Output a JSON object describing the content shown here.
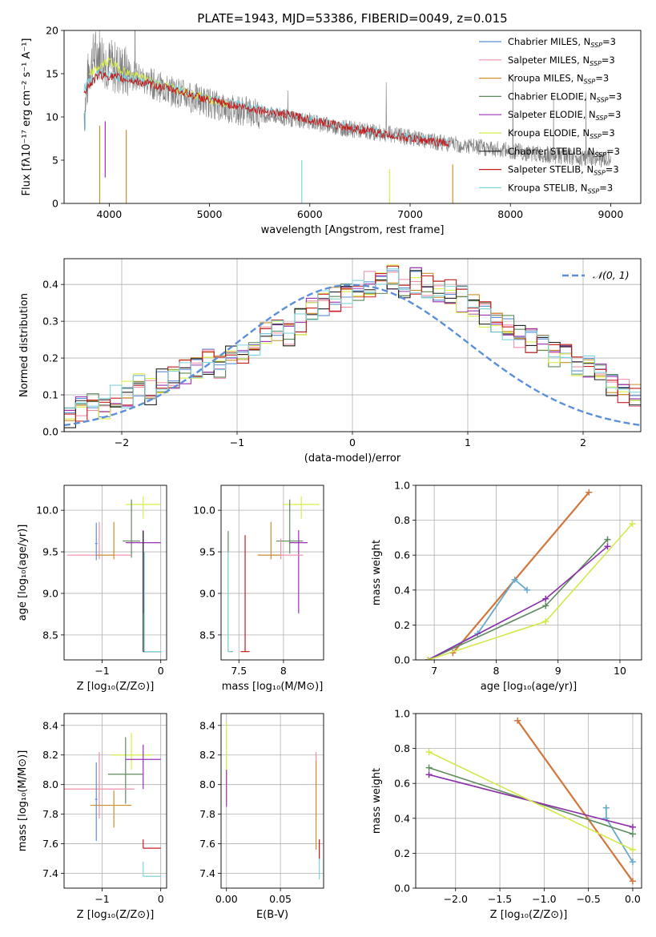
{
  "figure_title": "PLATE=1943, MJD=53386, FIBERID=0049, z=0.015",
  "colors": {
    "chabrier_miles": "#5b8fd9",
    "salpeter_miles": "#f08fa8",
    "kroupa_miles": "#c9902a",
    "chabrier_elodie": "#5e8a5c",
    "salpeter_elodie": "#9b30b4",
    "kroupa_elodie": "#d8ee4a",
    "chabrier_stelib": "#222222",
    "salpeter_stelib": "#c81c1c",
    "kroupa_stelib": "#7fd4de",
    "data_spectrum": "#808080",
    "avg_chabrier_miles": "#66aacc",
    "avg_elodie_line": "#5e8a5c",
    "avg_salpeter_line": "#8b2fa8",
    "avg_kroupa_line": "#d4e84a",
    "avg_orange_line": "#d2773c"
  },
  "chart_data": [
    {
      "id": "spectrum",
      "type": "line",
      "title": "PLATE=1943, MJD=53386, FIBERID=0049, z=0.015",
      "xlabel": "wavelength [Angstrom, rest frame]",
      "ylabel": "Flux [fλ10⁻¹⁷ erg cm⁻² s⁻¹ A⁻¹]",
      "xlim": [
        3550,
        9300
      ],
      "ylim": [
        0,
        20
      ],
      "xticks": [
        4000,
        5000,
        6000,
        7000,
        8000,
        9000
      ],
      "yticks": [
        0,
        5,
        10,
        15,
        20
      ],
      "legend_position": "top-right",
      "legend": [
        {
          "label": "Chabrier MILES, N",
          "sub": "SSP",
          "suffix": "=3",
          "color_key": "chabrier_miles"
        },
        {
          "label": "Salpeter MILES, N",
          "sub": "SSP",
          "suffix": "=3",
          "color_key": "salpeter_miles"
        },
        {
          "label": "Kroupa MILES, N",
          "sub": "SSP",
          "suffix": "=3",
          "color_key": "kroupa_miles"
        },
        {
          "label": "Chabrier ELODIE, N",
          "sub": "SSP",
          "suffix": "=3",
          "color_key": "chabrier_elodie"
        },
        {
          "label": "Salpeter ELODIE, N",
          "sub": "SSP",
          "suffix": "=3",
          "color_key": "salpeter_elodie"
        },
        {
          "label": "Kroupa ELODIE, N",
          "sub": "SSP",
          "suffix": "=3",
          "color_key": "kroupa_elodie"
        },
        {
          "label": "Chabrier STELIB, N",
          "sub": "SSP",
          "suffix": "=3",
          "color_key": "chabrier_stelib"
        },
        {
          "label": "Salpeter STELIB, N",
          "sub": "SSP",
          "suffix": "=3",
          "color_key": "salpeter_stelib"
        },
        {
          "label": "Kroupa STELIB, N",
          "sub": "SSP",
          "suffix": "=3",
          "color_key": "kroupa_stelib"
        }
      ],
      "data_series": {
        "x": [
          3750,
          3800,
          3850,
          3900,
          3950,
          4000,
          4100,
          4200,
          4300,
          4400,
          4500,
          4600,
          4700,
          4800,
          4900,
          5000,
          5200,
          5400,
          5600,
          5800,
          6000,
          6200,
          6400,
          6600,
          6800,
          7000,
          7200,
          7400,
          7600,
          7800,
          8000,
          8200,
          8400,
          8600,
          8800,
          9000
        ],
        "y": [
          10.5,
          15.5,
          17,
          17.5,
          16.5,
          16,
          15.5,
          15,
          14.5,
          14,
          13.5,
          13,
          12.8,
          12.3,
          12,
          11.6,
          11,
          10.6,
          10.2,
          9.8,
          9.5,
          9,
          8.6,
          8.3,
          8,
          7.6,
          7.2,
          6.9,
          6.6,
          6.3,
          6.1,
          5.8,
          5.6,
          5.4,
          5.2,
          5.0
        ]
      },
      "model_series": [
        {
          "name": "Kroupa ELODIE, NSSP=3",
          "color_key": "kroupa_elodie",
          "x": [
            3800,
            3900,
            4000,
            4100,
            4200,
            4400,
            4600,
            4800,
            5000,
            5200
          ],
          "y": [
            14.8,
            15.8,
            16.5,
            15.6,
            15,
            14.2,
            13.5,
            12.8,
            12,
            11.4
          ]
        },
        {
          "name": "Kroupa STELIB, NSSP=3",
          "color_key": "kroupa_stelib",
          "x": [
            3750,
            3900,
            4100,
            4400,
            4700,
            5000,
            5400,
            5800,
            6200,
            6600,
            7000,
            7400
          ],
          "y": [
            13.5,
            15.2,
            14.6,
            14,
            13.2,
            12,
            11.2,
            10.3,
            9.3,
            8.4,
            7.6,
            7
          ]
        },
        {
          "name": "Salpeter STELIB, NSSP=3",
          "color_key": "salpeter_stelib",
          "x": [
            3750,
            3900,
            4100,
            4400,
            4700,
            5000,
            5400,
            5800,
            6200,
            6600,
            7000,
            7400
          ],
          "y": [
            13,
            14.9,
            14.5,
            13.8,
            13,
            11.9,
            11,
            10.2,
            9.2,
            8.3,
            7.5,
            6.9
          ]
        }
      ],
      "spikes": [
        {
          "x": 3760,
          "ymin": 8.5,
          "ymax": 10.5,
          "color_key": "kroupa_stelib"
        },
        {
          "x": 3905,
          "ymin": 0,
          "ymax": 9,
          "color_key": "kroupa_miles"
        },
        {
          "x": 3960,
          "ymin": 3,
          "ymax": 9.5,
          "color_key": "salpeter_elodie"
        },
        {
          "x": 4170,
          "ymin": 0,
          "ymax": 8.5,
          "color_key": "kroupa_miles"
        },
        {
          "x": 5920,
          "ymin": 0,
          "ymax": 5,
          "color_key": "kroupa_stelib"
        },
        {
          "x": 6795,
          "ymin": 0,
          "ymax": 4,
          "color_key": "kroupa_elodie"
        },
        {
          "x": 7425,
          "ymin": 0,
          "ymax": 4.5,
          "color_key": "kroupa_miles"
        }
      ]
    },
    {
      "id": "residuals",
      "type": "histogram",
      "xlabel": "(data-model)/error",
      "ylabel": "Normed distribution",
      "xlim": [
        -2.5,
        2.5
      ],
      "ylim": [
        0,
        0.47
      ],
      "xticks": [
        -2,
        -1,
        0,
        1,
        2
      ],
      "yticks": [
        0.0,
        0.1,
        0.2,
        0.3,
        0.4
      ],
      "grid": true,
      "legend_position": "top-right",
      "gaussian_label": "𝒩(0, 1)",
      "gaussian_color": "#5b8fd9",
      "bin_width": 0.1,
      "bins_start": -2.5,
      "base_heights": [
        0.04,
        0.06,
        0.08,
        0.07,
        0.09,
        0.1,
        0.12,
        0.11,
        0.14,
        0.15,
        0.16,
        0.17,
        0.19,
        0.18,
        0.2,
        0.22,
        0.24,
        0.26,
        0.28,
        0.27,
        0.3,
        0.33,
        0.35,
        0.36,
        0.37,
        0.38,
        0.4,
        0.41,
        0.42,
        0.4,
        0.41,
        0.4,
        0.39,
        0.38,
        0.36,
        0.35,
        0.32,
        0.3,
        0.28,
        0.26,
        0.25,
        0.23,
        0.21,
        0.2,
        0.18,
        0.17,
        0.15,
        0.13,
        0.11,
        0.1
      ],
      "series_keys": [
        "chabrier_miles",
        "salpeter_miles",
        "kroupa_miles",
        "chabrier_elodie",
        "salpeter_elodie",
        "kroupa_elodie",
        "chabrier_stelib",
        "salpeter_stelib",
        "kroupa_stelib"
      ]
    },
    {
      "id": "z_vs_age",
      "type": "errorbar",
      "xlabel": "Z [log₁₀(Z/Z⊙)]",
      "ylabel": "age  [log₁₀(age/yr)]",
      "xlim": [
        -1.65,
        0.1
      ],
      "ylim": [
        8.2,
        10.3
      ],
      "xticks": [
        -1,
        0
      ],
      "yticks": [
        8.5,
        9.0,
        9.5,
        10.0
      ],
      "grid": true,
      "points": [
        {
          "x": -0.3,
          "y": 10.07,
          "xerr": 0.3,
          "yerr": [
            0.17,
            0.1
          ],
          "color_key": "kroupa_elodie"
        },
        {
          "x": -0.5,
          "y": 9.63,
          "xerr": 0.15,
          "yerr": [
            0.2,
            0.5
          ],
          "color_key": "chabrier_elodie"
        },
        {
          "x": -0.3,
          "y": 9.61,
          "xerr": 0.3,
          "yerr": [
            0.85,
            0.15
          ],
          "color_key": "salpeter_elodie"
        },
        {
          "x": -1.05,
          "y": 9.46,
          "xerr": [
            0.55,
            0.55
          ],
          "yerr": [
            0.05,
            0.4
          ],
          "color_key": "salpeter_miles"
        },
        {
          "x": -0.8,
          "y": 9.46,
          "xerr": [
            0.3,
            0.0
          ],
          "yerr": [
            0.05,
            0.4
          ],
          "color_key": "kroupa_miles"
        },
        {
          "x": -1.1,
          "y": 9.6,
          "xerr": 0.02,
          "yerr": [
            0.2,
            0.25
          ],
          "color_key": "chabrier_miles"
        },
        {
          "x": -0.3,
          "y": 8.3,
          "xerr": [
            0.0,
            0.3
          ],
          "yerr": [
            0.0,
            1.45
          ],
          "color_key": "chabrier_stelib"
        },
        {
          "x": -0.28,
          "y": 8.3,
          "xerr": [
            0.0,
            0.3
          ],
          "yerr": [
            0.0,
            1.2
          ],
          "color_key": "kroupa_stelib"
        }
      ]
    },
    {
      "id": "mass_vs_age",
      "type": "errorbar",
      "xlabel": "mass [log₁₀(M/M⊙)]",
      "ylabel": "",
      "xlim": [
        7.3,
        8.45
      ],
      "ylim": [
        8.2,
        10.3
      ],
      "xticks": [
        7.5,
        8.0
      ],
      "yticks": [
        8.5,
        9.0,
        9.5,
        10.0
      ],
      "grid": true,
      "points": [
        {
          "x": 8.2,
          "y": 10.07,
          "xerr": 0.2,
          "yerr": [
            0.17,
            0.1
          ],
          "color_key": "kroupa_elodie"
        },
        {
          "x": 8.07,
          "y": 9.63,
          "xerr": 0.15,
          "yerr": [
            0.15,
            0.5
          ],
          "color_key": "chabrier_elodie"
        },
        {
          "x": 8.17,
          "y": 9.61,
          "xerr": 0.1,
          "yerr": [
            0.85,
            0.15
          ],
          "color_key": "salpeter_elodie"
        },
        {
          "x": 7.97,
          "y": 9.46,
          "xerr": 0.25,
          "yerr": [
            0.05,
            0.2
          ],
          "color_key": "salpeter_miles"
        },
        {
          "x": 7.86,
          "y": 9.46,
          "xerr": [
            0.15,
            0.1
          ],
          "yerr": [
            0.05,
            0.4
          ],
          "color_key": "kroupa_miles"
        },
        {
          "x": 7.38,
          "y": 8.3,
          "xerr": [
            0.0,
            0.05
          ],
          "yerr": [
            0.0,
            1.45
          ],
          "color_key": "chabrier_elodie"
        },
        {
          "x": 7.57,
          "y": 8.3,
          "xerr": 0.05,
          "yerr": [
            0.0,
            1.4
          ],
          "color_key": "salpeter_stelib"
        },
        {
          "x": 7.38,
          "y": 8.3,
          "xerr": [
            0.0,
            0.04
          ],
          "yerr": [
            0.0,
            1.2
          ],
          "color_key": "kroupa_stelib"
        }
      ]
    },
    {
      "id": "age_vs_weight",
      "type": "line",
      "xlabel": "age  [log₁₀(age/yr)]",
      "ylabel": "mass weight",
      "xlim": [
        6.7,
        10.35
      ],
      "ylim": [
        0,
        1.0
      ],
      "xticks": [
        7,
        8,
        9,
        10
      ],
      "yticks": [
        0.0,
        0.2,
        0.4,
        0.6,
        0.8,
        1.0
      ],
      "grid": true,
      "series": [
        {
          "color_key": "avg_orange_line",
          "x": [
            7.3,
            9.5
          ],
          "y": [
            0.04,
            0.96
          ],
          "width": 2.2
        },
        {
          "color_key": "avg_chabrier_miles",
          "x": [
            6.9,
            7.7,
            8.3,
            8.5
          ],
          "y": [
            0.0,
            0.15,
            0.46,
            0.4
          ],
          "width": 1.8
        },
        {
          "color_key": "avg_elodie_line",
          "x": [
            6.9,
            8.8,
            9.8
          ],
          "y": [
            0.0,
            0.31,
            0.69
          ],
          "width": 1.6
        },
        {
          "color_key": "avg_salpeter_line",
          "x": [
            6.9,
            8.8,
            9.8
          ],
          "y": [
            0.0,
            0.35,
            0.65
          ],
          "width": 1.6
        },
        {
          "color_key": "avg_kroupa_line",
          "x": [
            6.9,
            8.8,
            10.2
          ],
          "y": [
            0.0,
            0.22,
            0.78
          ],
          "width": 1.6
        }
      ]
    },
    {
      "id": "z_vs_mass",
      "type": "errorbar",
      "xlabel": "Z [log₁₀(Z/Z⊙)]",
      "ylabel": "mass [log₁₀(M/M⊙)]",
      "xlim": [
        -1.65,
        0.1
      ],
      "ylim": [
        7.3,
        8.48
      ],
      "xticks": [
        -1,
        0
      ],
      "yticks": [
        7.4,
        7.6,
        7.8,
        8.0,
        8.2,
        8.4
      ],
      "grid": true,
      "points": [
        {
          "x": -0.5,
          "y": 8.2,
          "xerr": 0.35,
          "yerr": [
            0.1,
            0.15
          ],
          "color_key": "kroupa_elodie"
        },
        {
          "x": -0.6,
          "y": 8.07,
          "xerr": 0.3,
          "yerr": [
            0.2,
            0.25
          ],
          "color_key": "chabrier_elodie"
        },
        {
          "x": -0.3,
          "y": 8.17,
          "xerr": 0.3,
          "yerr": [
            0.2,
            0.1
          ],
          "color_key": "salpeter_elodie"
        },
        {
          "x": -1.05,
          "y": 7.97,
          "xerr": 0.6,
          "yerr": [
            0.2,
            0.25
          ],
          "color_key": "salpeter_miles"
        },
        {
          "x": -0.8,
          "y": 7.86,
          "xerr": [
            0.4,
            0.3
          ],
          "yerr": [
            0.15,
            0.1
          ],
          "color_key": "kroupa_miles"
        },
        {
          "x": -1.1,
          "y": 7.9,
          "xerr": 0.02,
          "yerr": [
            0.28,
            0.25
          ],
          "color_key": "chabrier_miles"
        },
        {
          "x": -0.3,
          "y": 7.57,
          "xerr": [
            0.0,
            0.3
          ],
          "yerr": [
            0.0,
            0.06
          ],
          "color_key": "salpeter_stelib"
        },
        {
          "x": -0.3,
          "y": 7.38,
          "xerr": [
            0.0,
            0.3
          ],
          "yerr": [
            0.0,
            0.1
          ],
          "color_key": "kroupa_stelib"
        }
      ]
    },
    {
      "id": "ebv_vs_mass",
      "type": "errorbar",
      "xlabel": "E(B-V)",
      "ylabel": "",
      "xlim": [
        -0.005,
        0.09
      ],
      "ylim": [
        7.3,
        8.48
      ],
      "xticks": [
        0.0,
        0.05
      ],
      "xtick_labels": [
        "0.00",
        "0.05"
      ],
      "yticks": [
        7.4,
        7.6,
        7.8,
        8.0,
        8.2,
        8.4
      ],
      "grid": true,
      "points": [
        {
          "x": 0.0,
          "y": 8.17,
          "xerr": 0.0,
          "yerr": [
            0.3,
            0.25
          ],
          "color_key": "kroupa_elodie"
        },
        {
          "x": 0.0,
          "y": 8.0,
          "xerr": 0.0,
          "yerr": [
            0.15,
            0.1
          ],
          "color_key": "salpeter_elodie"
        },
        {
          "x": 0.083,
          "y": 7.97,
          "xerr": 0.0,
          "yerr": [
            0.2,
            0.25
          ],
          "color_key": "salpeter_miles"
        },
        {
          "x": 0.083,
          "y": 7.86,
          "xerr": 0.0,
          "yerr": [
            0.3,
            0.3
          ],
          "color_key": "kroupa_miles"
        },
        {
          "x": 0.086,
          "y": 7.57,
          "xerr": 0.0,
          "yerr": [
            0.08,
            0.06
          ],
          "color_key": "salpeter_stelib"
        },
        {
          "x": 0.086,
          "y": 7.42,
          "xerr": 0.0,
          "yerr": [
            0.06,
            0.08
          ],
          "color_key": "kroupa_stelib"
        }
      ]
    },
    {
      "id": "z_vs_weight",
      "type": "line",
      "xlabel": "Z [log₁₀(Z/Z⊙)]",
      "ylabel": "mass weight",
      "xlim": [
        -2.45,
        0.1
      ],
      "ylim": [
        0,
        1.0
      ],
      "xticks": [
        -2.0,
        -1.5,
        -1.0,
        -0.5,
        0.0
      ],
      "xtick_labels": [
        "−2.0",
        "−1.5",
        "−1.0",
        "−0.5",
        "0.0"
      ],
      "yticks": [
        0.0,
        0.2,
        0.4,
        0.6,
        0.8,
        1.0
      ],
      "grid": true,
      "series": [
        {
          "color_key": "avg_orange_line",
          "x": [
            -1.3,
            0.0
          ],
          "y": [
            0.96,
            0.04
          ],
          "width": 2.2
        },
        {
          "color_key": "avg_chabrier_miles",
          "x": [
            -0.3,
            -0.3,
            0.0
          ],
          "y": [
            0.46,
            0.4,
            0.15
          ],
          "width": 1.8
        },
        {
          "color_key": "avg_elodie_line",
          "x": [
            -2.3,
            0.0
          ],
          "y": [
            0.69,
            0.31
          ],
          "width": 1.6
        },
        {
          "color_key": "avg_salpeter_line",
          "x": [
            -2.3,
            0.0
          ],
          "y": [
            0.65,
            0.35
          ],
          "width": 1.6
        },
        {
          "color_key": "avg_kroupa_line",
          "x": [
            -2.3,
            0.0
          ],
          "y": [
            0.78,
            0.22
          ],
          "width": 1.6
        }
      ]
    }
  ]
}
